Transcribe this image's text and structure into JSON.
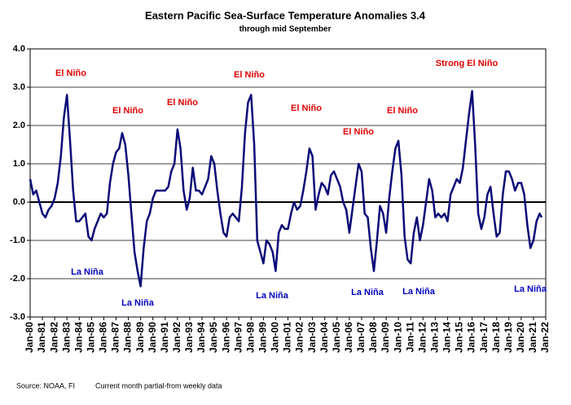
{
  "chart_data": {
    "type": "line",
    "title": "Eastern Pacific Sea-Surface Temperature Anomalies 3.4",
    "subtitle": "through mid September",
    "source": "Source: NOAA, FI",
    "note": "Current month partial-from weekly data",
    "grid": true,
    "series": [
      {
        "color": "#0a0a78",
        "x": [
          1980,
          1980.25,
          1980.5,
          1980.75,
          1981,
          1981.25,
          1981.5,
          1981.75,
          1982,
          1982.25,
          1982.5,
          1982.75,
          1983,
          1983.25,
          1983.5,
          1983.75,
          1984,
          1984.25,
          1984.5,
          1984.75,
          1985,
          1985.25,
          1985.5,
          1985.75,
          1986,
          1986.25,
          1986.5,
          1986.75,
          1987,
          1987.25,
          1987.5,
          1987.75,
          1988,
          1988.25,
          1988.5,
          1988.75,
          1989,
          1989.25,
          1989.5,
          1989.75,
          1990,
          1990.25,
          1990.5,
          1990.75,
          1991,
          1991.25,
          1991.5,
          1991.75,
          1992,
          1992.25,
          1992.5,
          1992.75,
          1993,
          1993.25,
          1993.5,
          1993.75,
          1994,
          1994.25,
          1994.5,
          1994.75,
          1995,
          1995.25,
          1995.5,
          1995.75,
          1996,
          1996.25,
          1996.5,
          1996.75,
          1997,
          1997.25,
          1997.5,
          1997.75,
          1998,
          1998.25,
          1998.5,
          1998.75,
          1999,
          1999.25,
          1999.5,
          1999.75,
          2000,
          2000.25,
          2000.5,
          2000.75,
          2001,
          2001.25,
          2001.5,
          2001.75,
          2002,
          2002.25,
          2002.5,
          2002.75,
          2003,
          2003.25,
          2003.5,
          2003.75,
          2004,
          2004.25,
          2004.5,
          2004.75,
          2005,
          2005.25,
          2005.5,
          2005.75,
          2006,
          2006.25,
          2006.5,
          2006.75,
          2007,
          2007.25,
          2007.5,
          2007.75,
          2008,
          2008.25,
          2008.5,
          2008.75,
          2009,
          2009.25,
          2009.5,
          2009.75,
          2010,
          2010.25,
          2010.5,
          2010.75,
          2011,
          2011.25,
          2011.5,
          2011.75,
          2012,
          2012.25,
          2012.5,
          2012.75,
          2013,
          2013.25,
          2013.5,
          2013.75,
          2014,
          2014.25,
          2014.5,
          2014.75,
          2015,
          2015.25,
          2015.5,
          2015.75,
          2016,
          2016.25,
          2016.5,
          2016.75,
          2017,
          2017.25,
          2017.5,
          2017.75,
          2018,
          2018.25,
          2018.5,
          2018.75,
          2019,
          2019.25,
          2019.5,
          2019.75,
          2020,
          2020.25,
          2020.5,
          2020.75,
          2021,
          2021.25,
          2021.5,
          2021.67
        ],
        "values": [
          0.6,
          0.2,
          0.3,
          0.0,
          -0.3,
          -0.4,
          -0.2,
          -0.1,
          0.1,
          0.5,
          1.2,
          2.2,
          2.8,
          1.6,
          0.3,
          -0.5,
          -0.5,
          -0.4,
          -0.3,
          -0.9,
          -1.0,
          -0.7,
          -0.5,
          -0.3,
          -0.4,
          -0.3,
          0.5,
          1.0,
          1.3,
          1.4,
          1.8,
          1.5,
          0.7,
          -0.3,
          -1.3,
          -1.8,
          -2.2,
          -1.2,
          -0.5,
          -0.3,
          0.1,
          0.3,
          0.3,
          0.3,
          0.3,
          0.4,
          0.8,
          1.0,
          1.9,
          1.4,
          0.3,
          -0.2,
          0.1,
          0.9,
          0.3,
          0.3,
          0.2,
          0.4,
          0.6,
          1.2,
          1.0,
          0.3,
          -0.3,
          -0.8,
          -0.9,
          -0.4,
          -0.3,
          -0.4,
          -0.5,
          0.4,
          1.8,
          2.6,
          2.8,
          1.5,
          -1.0,
          -1.3,
          -1.6,
          -1.0,
          -1.1,
          -1.3,
          -1.8,
          -0.8,
          -0.6,
          -0.7,
          -0.7,
          -0.3,
          0.0,
          -0.2,
          -0.1,
          0.3,
          0.8,
          1.4,
          1.2,
          -0.2,
          0.2,
          0.5,
          0.4,
          0.2,
          0.7,
          0.8,
          0.6,
          0.4,
          0.0,
          -0.2,
          -0.8,
          -0.2,
          0.4,
          1.0,
          0.8,
          -0.3,
          -0.4,
          -1.2,
          -1.8,
          -1.0,
          -0.1,
          -0.3,
          -0.8,
          0.1,
          0.8,
          1.4,
          1.6,
          0.7,
          -0.9,
          -1.5,
          -1.6,
          -0.8,
          -0.4,
          -1.0,
          -0.6,
          0.0,
          0.6,
          0.3,
          -0.4,
          -0.3,
          -0.4,
          -0.3,
          -0.5,
          0.2,
          0.4,
          0.6,
          0.5,
          0.9,
          1.6,
          2.3,
          2.9,
          1.5,
          -0.3,
          -0.7,
          -0.4,
          0.2,
          0.4,
          -0.3,
          -0.9,
          -0.8,
          0.2,
          0.8,
          0.8,
          0.6,
          0.3,
          0.5,
          0.5,
          0.2,
          -0.6,
          -1.2,
          -1.0,
          -0.5,
          -0.3,
          -0.4
        ]
      }
    ],
    "xlim": [
      1980,
      2022
    ],
    "xticks": [
      {
        "value": 1980,
        "label": "Jan-80"
      },
      {
        "value": 1981,
        "label": "Jan-81"
      },
      {
        "value": 1982,
        "label": "Jan-82"
      },
      {
        "value": 1983,
        "label": "Jan-83"
      },
      {
        "value": 1984,
        "label": "Jan-84"
      },
      {
        "value": 1985,
        "label": "Jan-85"
      },
      {
        "value": 1986,
        "label": "Jan-86"
      },
      {
        "value": 1987,
        "label": "Jan-87"
      },
      {
        "value": 1988,
        "label": "Jan-88"
      },
      {
        "value": 1989,
        "label": "Jan-89"
      },
      {
        "value": 1990,
        "label": "Jan-90"
      },
      {
        "value": 1991,
        "label": "Jan-91"
      },
      {
        "value": 1992,
        "label": "Jan-92"
      },
      {
        "value": 1993,
        "label": "Jan-93"
      },
      {
        "value": 1994,
        "label": "Jan-94"
      },
      {
        "value": 1995,
        "label": "Jan-95"
      },
      {
        "value": 1996,
        "label": "Jan-96"
      },
      {
        "value": 1997,
        "label": "Jan-97"
      },
      {
        "value": 1998,
        "label": "Jan-98"
      },
      {
        "value": 1999,
        "label": "Jan-99"
      },
      {
        "value": 2000,
        "label": "Jan-00"
      },
      {
        "value": 2001,
        "label": "Jan-01"
      },
      {
        "value": 2002,
        "label": "Jan-02"
      },
      {
        "value": 2003,
        "label": "Jan-03"
      },
      {
        "value": 2004,
        "label": "Jan-04"
      },
      {
        "value": 2005,
        "label": "Jan-05"
      },
      {
        "value": 2006,
        "label": "Jan-06"
      },
      {
        "value": 2007,
        "label": "Jan-07"
      },
      {
        "value": 2008,
        "label": "Jan-08"
      },
      {
        "value": 2009,
        "label": "Jan-09"
      },
      {
        "value": 2010,
        "label": "Jan-10"
      },
      {
        "value": 2011,
        "label": "Jan-11"
      },
      {
        "value": 2012,
        "label": "Jan-12"
      },
      {
        "value": 2013,
        "label": "Jan-13"
      },
      {
        "value": 2014,
        "label": "Jan-14"
      },
      {
        "value": 2015,
        "label": "Jan-15"
      },
      {
        "value": 2016,
        "label": "Jan-16"
      },
      {
        "value": 2017,
        "label": "Jan-17"
      },
      {
        "value": 2018,
        "label": "Jan-18"
      },
      {
        "value": 2019,
        "label": "Jan-19"
      },
      {
        "value": 2020,
        "label": "Jan-20"
      },
      {
        "value": 2021,
        "label": "Jan-21"
      },
      {
        "value": 2022,
        "label": "Jan-22"
      }
    ],
    "ylim": [
      -3,
      4
    ],
    "yticks": [
      {
        "value": -3,
        "label": "-3.0"
      },
      {
        "value": -2,
        "label": "-2.0"
      },
      {
        "value": -1,
        "label": "-1.0"
      },
      {
        "value": 0,
        "label": "0.0"
      },
      {
        "value": 1,
        "label": "1.0"
      },
      {
        "value": 2,
        "label": "2.0"
      },
      {
        "value": 3,
        "label": "3.0"
      },
      {
        "value": 4,
        "label": "4.0"
      }
    ],
    "annotations": [
      {
        "text": "El Niño",
        "color": "#e00000"
      },
      {
        "text": "El Niño",
        "color": "#e00000"
      },
      {
        "text": "El Niño",
        "color": "#e00000"
      },
      {
        "text": "El Niño",
        "color": "#e00000"
      },
      {
        "text": "El Niño",
        "color": "#e00000"
      },
      {
        "text": "El Niño",
        "color": "#e00000"
      },
      {
        "text": "El Niño",
        "color": "#e00000"
      },
      {
        "text": "Strong El Niño",
        "color": "#e00000"
      },
      {
        "text": "La Niña",
        "color": "#0000c0"
      },
      {
        "text": "La Niña",
        "color": "#0000c0"
      },
      {
        "text": "La Niña",
        "color": "#0000c0"
      },
      {
        "text": "La Niña",
        "color": "#0000c0"
      },
      {
        "text": "La Niña",
        "color": "#0000c0"
      },
      {
        "text": "La Niña",
        "color": "#0000c0"
      }
    ]
  }
}
